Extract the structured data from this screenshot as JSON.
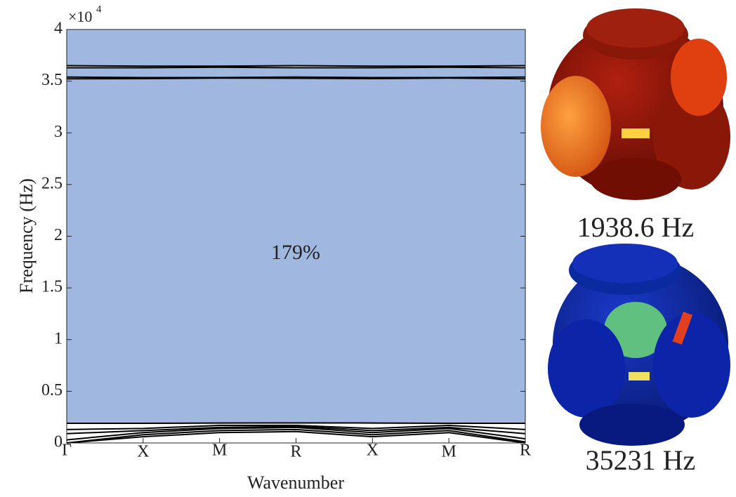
{
  "chart_data": {
    "type": "line",
    "y_axis_label": "Frequency (Hz)",
    "x_axis_label": "Wavenumber",
    "y_multiplier": "×10",
    "y_multiplier_exp": "4",
    "annotation": "179%",
    "categories": [
      "Γ",
      "X",
      "M",
      "R",
      "X",
      "M",
      "R"
    ],
    "ylim": [
      0,
      40000
    ],
    "yticks": [
      0,
      {
        "value": 5000,
        "label": "0.5"
      },
      {
        "value": 10000,
        "label": "1"
      },
      {
        "value": 15000,
        "label": "1.5"
      },
      {
        "value": 20000,
        "label": "2"
      },
      {
        "value": 25000,
        "label": "2.5"
      },
      {
        "value": 30000,
        "label": "3"
      },
      {
        "value": 35000,
        "label": "3.5"
      },
      {
        "value": 40000,
        "label": "4"
      }
    ],
    "shaded": [
      [
        1938.6,
        35231
      ],
      [
        35400,
        36300
      ],
      [
        36500,
        40000
      ]
    ],
    "shade_color": "#a0b8e0",
    "line_color": "#000000",
    "series": [
      {
        "values": [
          0,
          600,
          1000,
          1100,
          600,
          1000,
          0
        ]
      },
      {
        "values": [
          0,
          800,
          1200,
          1300,
          800,
          1200,
          100
        ]
      },
      {
        "values": [
          300,
          1000,
          1400,
          1500,
          1000,
          1400,
          400
        ]
      },
      {
        "values": [
          900,
          1200,
          1500,
          1600,
          1200,
          1500,
          900
        ]
      },
      {
        "values": [
          1300,
          1400,
          1700,
          1700,
          1400,
          1700,
          1300
        ]
      },
      {
        "values": [
          1900,
          1900,
          1930,
          1938.6,
          1930,
          1900,
          1900
        ]
      },
      {
        "values": [
          35231,
          35250,
          35300,
          35280,
          35250,
          35300,
          35231
        ]
      },
      {
        "values": [
          35400,
          35350,
          35350,
          35400,
          35350,
          35350,
          35400
        ]
      },
      {
        "values": [
          36300,
          36300,
          36350,
          36300,
          36300,
          36350,
          36300
        ]
      },
      {
        "values": [
          36500,
          36450,
          36450,
          36500,
          36450,
          36450,
          36500
        ]
      }
    ],
    "mode_shapes": [
      {
        "label": "1938.6 Hz"
      },
      {
        "label": "35231 Hz"
      }
    ]
  }
}
